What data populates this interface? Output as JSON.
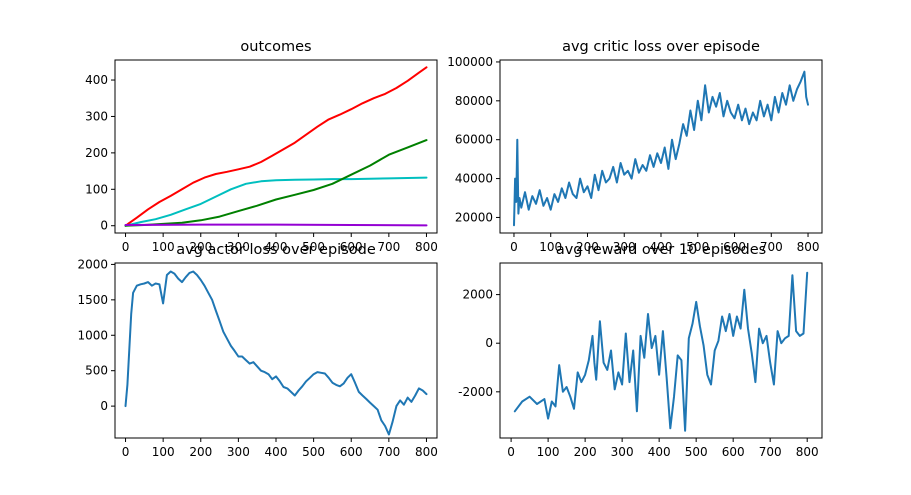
{
  "chart_data": [
    {
      "type": "line",
      "title": "outcomes",
      "xlabel": "",
      "ylabel": "",
      "xlim": [
        -28,
        828
      ],
      "ylim": [
        -20,
        455
      ],
      "xticks": [
        0,
        100,
        200,
        300,
        400,
        500,
        600,
        700,
        800
      ],
      "yticks": [
        0,
        100,
        200,
        300,
        400
      ],
      "grid": false,
      "legend": "none",
      "series": [
        {
          "color": "#ff0000",
          "x": [
            0,
            30,
            60,
            90,
            120,
            150,
            180,
            210,
            240,
            270,
            300,
            330,
            360,
            390,
            420,
            450,
            480,
            510,
            540,
            570,
            600,
            630,
            660,
            690,
            720,
            750,
            780,
            800
          ],
          "values": [
            0,
            22,
            45,
            65,
            82,
            100,
            118,
            132,
            142,
            148,
            155,
            162,
            175,
            192,
            210,
            228,
            250,
            272,
            292,
            305,
            320,
            336,
            350,
            362,
            378,
            398,
            420,
            435
          ]
        },
        {
          "color": "#00bfbf",
          "x": [
            0,
            40,
            80,
            120,
            160,
            200,
            240,
            280,
            320,
            360,
            400,
            450,
            500,
            550,
            600,
            650,
            700,
            750,
            800
          ],
          "values": [
            0,
            10,
            18,
            30,
            45,
            60,
            80,
            100,
            115,
            122,
            125,
            126,
            127,
            128,
            128,
            129,
            130,
            131,
            132
          ]
        },
        {
          "color": "#008000",
          "x": [
            0,
            50,
            100,
            150,
            200,
            250,
            300,
            350,
            400,
            450,
            500,
            550,
            600,
            650,
            700,
            750,
            800
          ],
          "values": [
            0,
            2,
            5,
            8,
            15,
            25,
            40,
            55,
            72,
            85,
            98,
            115,
            140,
            165,
            195,
            215,
            235
          ]
        },
        {
          "color": "#9400d3",
          "x": [
            0,
            200,
            400,
            600,
            800
          ],
          "values": [
            2,
            3,
            3,
            2,
            1
          ]
        }
      ]
    },
    {
      "type": "line",
      "title": "avg critic loss over episode",
      "xlabel": "",
      "ylabel": "",
      "xlim": [
        -38,
        838
      ],
      "ylim": [
        12000,
        101000
      ],
      "xticks": [
        0,
        100,
        200,
        300,
        400,
        500,
        600,
        700,
        800
      ],
      "yticks": [
        20000,
        40000,
        60000,
        80000,
        100000
      ],
      "grid": false,
      "legend": "none",
      "series": [
        {
          "color": "#1f77b4",
          "x": [
            0,
            3,
            6,
            9,
            12,
            15,
            20,
            30,
            40,
            50,
            60,
            70,
            80,
            90,
            100,
            110,
            120,
            130,
            140,
            150,
            160,
            170,
            180,
            190,
            200,
            210,
            220,
            230,
            240,
            250,
            260,
            270,
            280,
            290,
            300,
            310,
            320,
            330,
            340,
            350,
            360,
            370,
            380,
            390,
            400,
            410,
            420,
            430,
            440,
            450,
            460,
            470,
            480,
            490,
            500,
            510,
            520,
            530,
            540,
            550,
            560,
            570,
            580,
            590,
            600,
            610,
            620,
            630,
            640,
            650,
            660,
            670,
            680,
            690,
            700,
            710,
            720,
            730,
            740,
            750,
            760,
            770,
            780,
            790,
            795,
            800
          ],
          "values": [
            16000,
            40000,
            28000,
            60000,
            22000,
            30000,
            25000,
            33000,
            24000,
            31000,
            27000,
            34000,
            26000,
            30000,
            24000,
            32000,
            28000,
            35000,
            30000,
            38000,
            32000,
            30000,
            40000,
            33000,
            36000,
            30000,
            42000,
            34000,
            44000,
            38000,
            40000,
            46000,
            38000,
            48000,
            42000,
            44000,
            40000,
            50000,
            43000,
            47000,
            44000,
            52000,
            46000,
            53000,
            48000,
            56000,
            45000,
            60000,
            50000,
            58000,
            68000,
            62000,
            75000,
            65000,
            80000,
            70000,
            88000,
            74000,
            82000,
            77000,
            84000,
            72000,
            80000,
            74000,
            71000,
            78000,
            70000,
            76000,
            68000,
            74000,
            70000,
            80000,
            72000,
            78000,
            70000,
            82000,
            74000,
            84000,
            78000,
            88000,
            80000,
            86000,
            90000,
            95000,
            82000,
            78000
          ]
        }
      ]
    },
    {
      "type": "line",
      "title": "avg actor loss over episode",
      "xlabel": "",
      "ylabel": "",
      "xlim": [
        -28,
        828
      ],
      "ylim": [
        -450,
        2020
      ],
      "xticks": [
        0,
        100,
        200,
        300,
        400,
        500,
        600,
        700,
        800
      ],
      "yticks": [
        0,
        500,
        1000,
        1500,
        2000
      ],
      "grid": false,
      "legend": "none",
      "series": [
        {
          "color": "#1f77b4",
          "x": [
            0,
            5,
            10,
            15,
            20,
            30,
            40,
            50,
            60,
            70,
            80,
            90,
            100,
            110,
            120,
            130,
            140,
            150,
            160,
            170,
            180,
            190,
            200,
            210,
            220,
            230,
            240,
            250,
            260,
            270,
            280,
            290,
            300,
            310,
            320,
            330,
            340,
            350,
            360,
            370,
            380,
            390,
            400,
            410,
            420,
            430,
            440,
            450,
            460,
            470,
            480,
            490,
            500,
            510,
            520,
            530,
            540,
            550,
            560,
            570,
            580,
            590,
            600,
            610,
            620,
            630,
            640,
            650,
            660,
            670,
            680,
            690,
            700,
            710,
            720,
            730,
            740,
            750,
            760,
            770,
            780,
            790,
            800
          ],
          "values": [
            0,
            300,
            800,
            1300,
            1600,
            1700,
            1720,
            1730,
            1750,
            1700,
            1730,
            1720,
            1450,
            1850,
            1900,
            1870,
            1800,
            1750,
            1820,
            1880,
            1900,
            1850,
            1780,
            1700,
            1600,
            1500,
            1350,
            1200,
            1050,
            950,
            850,
            780,
            700,
            700,
            650,
            600,
            620,
            560,
            500,
            480,
            450,
            380,
            420,
            350,
            270,
            250,
            200,
            150,
            220,
            280,
            350,
            400,
            450,
            480,
            470,
            460,
            400,
            330,
            300,
            280,
            320,
            400,
            450,
            330,
            200,
            150,
            100,
            50,
            0,
            -50,
            -200,
            -280,
            -400,
            -220,
            0,
            80,
            20,
            120,
            60,
            150,
            250,
            220,
            170
          ]
        }
      ]
    },
    {
      "type": "line",
      "title": "avg reward over 10 episodes",
      "xlabel": "",
      "ylabel": "",
      "xlim": [
        -30,
        840
      ],
      "ylim": [
        -3900,
        3300
      ],
      "xticks": [
        0,
        100,
        200,
        300,
        400,
        500,
        600,
        700,
        800
      ],
      "yticks": [
        -2000,
        0,
        2000
      ],
      "grid": false,
      "legend": "none",
      "series": [
        {
          "color": "#1f77b4",
          "x": [
            10,
            30,
            50,
            70,
            90,
            100,
            110,
            120,
            130,
            140,
            150,
            160,
            170,
            180,
            190,
            200,
            210,
            220,
            225,
            230,
            240,
            250,
            260,
            270,
            280,
            290,
            300,
            310,
            320,
            330,
            340,
            350,
            360,
            370,
            380,
            390,
            400,
            410,
            420,
            430,
            440,
            450,
            460,
            470,
            480,
            490,
            500,
            510,
            520,
            530,
            540,
            550,
            560,
            570,
            580,
            590,
            600,
            610,
            620,
            630,
            640,
            650,
            660,
            670,
            680,
            690,
            700,
            710,
            720,
            730,
            740,
            750,
            760,
            770,
            780,
            790,
            800
          ],
          "values": [
            -2800,
            -2400,
            -2200,
            -2500,
            -2300,
            -3100,
            -2400,
            -2600,
            -900,
            -2000,
            -1800,
            -2200,
            -2700,
            -1200,
            -1600,
            -1300,
            -700,
            300,
            -800,
            -1500,
            900,
            -800,
            -1100,
            -300,
            -1900,
            -1200,
            -1700,
            400,
            -1600,
            -300,
            -2800,
            300,
            -600,
            1200,
            -200,
            300,
            -1300,
            500,
            -1400,
            -3500,
            -2200,
            -500,
            -700,
            -3600,
            200,
            800,
            1700,
            700,
            -100,
            -1300,
            -1700,
            -300,
            100,
            1100,
            500,
            1200,
            300,
            1100,
            600,
            2200,
            600,
            -400,
            -1600,
            600,
            0,
            300,
            -800,
            -1700,
            500,
            0,
            200,
            300,
            2800,
            500,
            300,
            400,
            2900
          ]
        }
      ]
    }
  ]
}
